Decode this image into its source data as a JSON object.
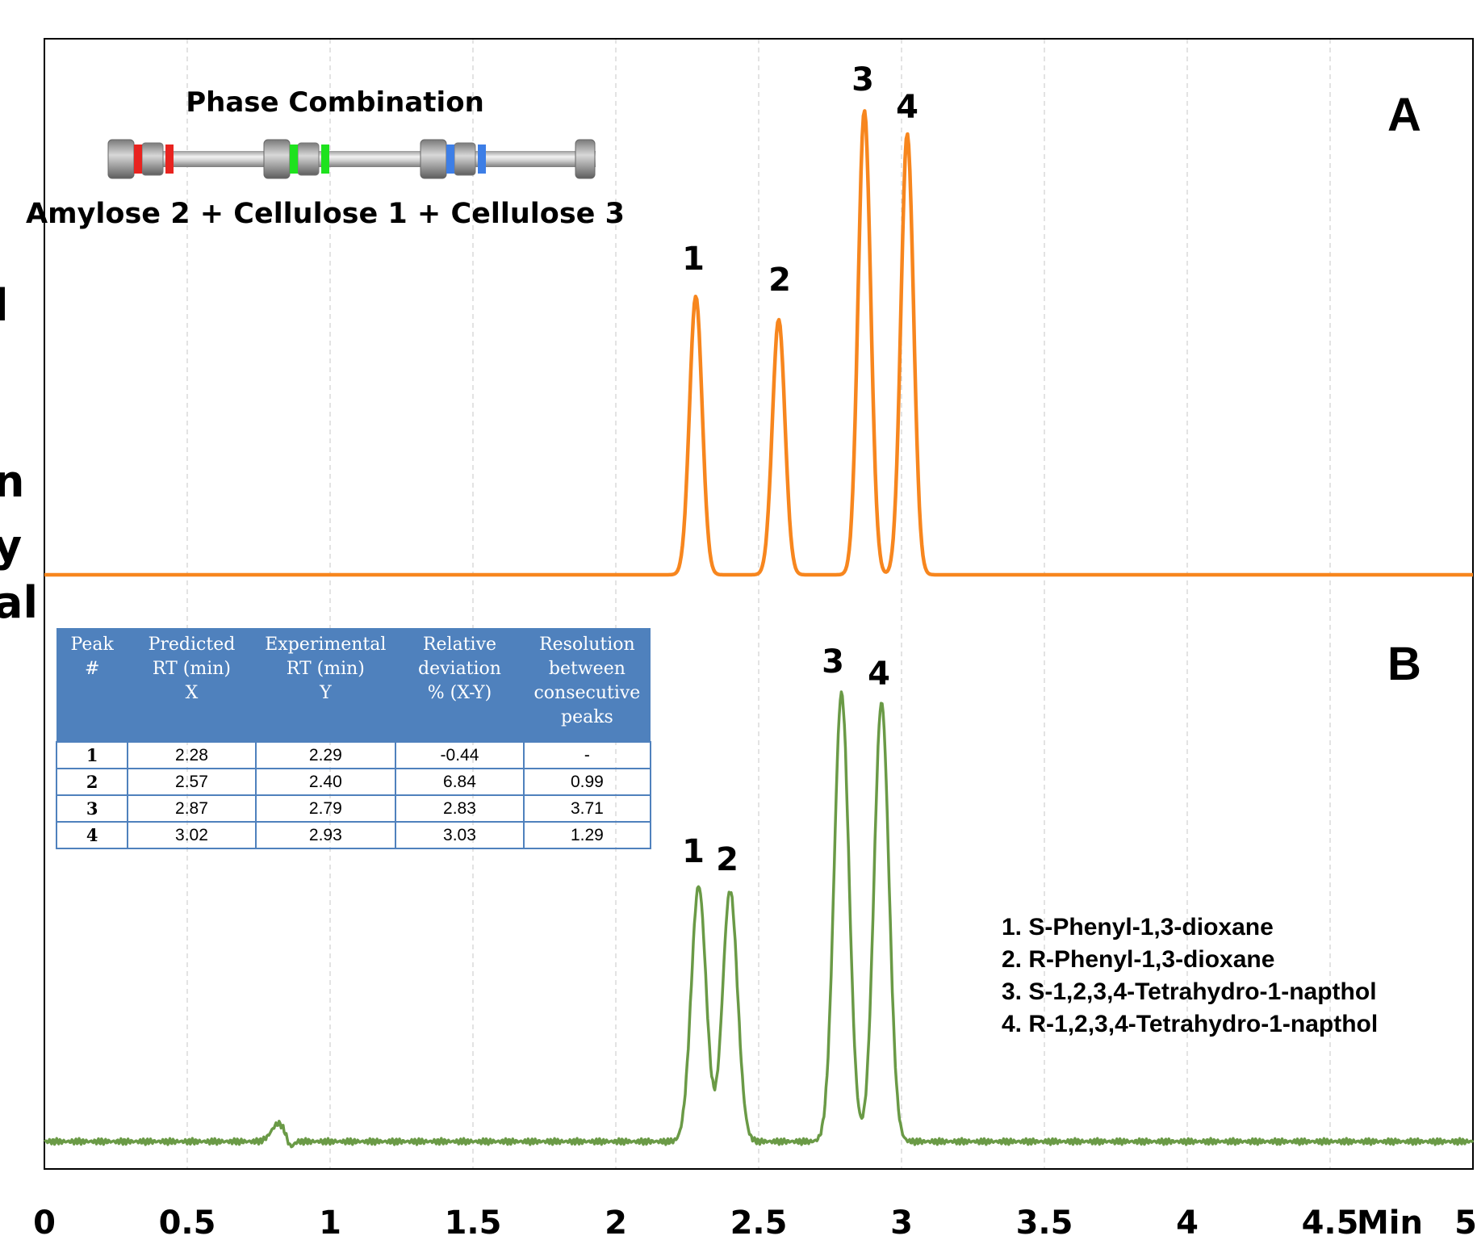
{
  "chart_data": [
    {
      "panel": "A",
      "type": "line",
      "color": "#f7861e",
      "xlim": [
        0,
        5
      ],
      "baseline": 0,
      "peaks": [
        {
          "label": "1",
          "x": 2.28,
          "height": 0.6
        },
        {
          "label": "2",
          "x": 2.57,
          "height": 0.55
        },
        {
          "label": "3",
          "x": 2.87,
          "height": 1.0
        },
        {
          "label": "4",
          "x": 3.02,
          "height": 0.95
        }
      ],
      "title": "Phase Combination",
      "subtitle": "Amylose 2 + Cellulose 1 + Cellulose 3"
    },
    {
      "panel": "B",
      "type": "line",
      "color": "#6a9a46",
      "xlim": [
        0,
        5
      ],
      "baseline": 0,
      "peaks": [
        {
          "label": "1",
          "x": 2.29,
          "height": 0.57
        },
        {
          "label": "2",
          "x": 2.4,
          "height": 0.56
        },
        {
          "label": "3",
          "x": 2.79,
          "height": 1.0
        },
        {
          "label": "4",
          "x": 2.93,
          "height": 0.98
        }
      ],
      "legend": [
        "1.  S-Phenyl-1,3-dioxane",
        "2.  R-Phenyl-1,3-dioxane",
        "3.  S-1,2,3,4-Tetrahydro-1-napthol",
        "4.  R-1,2,3,4-Tetrahydro-1-napthol"
      ]
    }
  ],
  "x_axis": {
    "ticks": [
      "0",
      "0.5",
      "1",
      "1.5",
      "2",
      "2.5",
      "3",
      "3.5",
      "4",
      "4.5",
      "5"
    ],
    "unit_label": "Min"
  },
  "table": {
    "headers": [
      [
        "Peak",
        "#"
      ],
      [
        "Predicted",
        "RT (min)",
        "X"
      ],
      [
        "Experimental",
        "RT (min)",
        "Y"
      ],
      [
        "Relative",
        "deviation",
        "% (X-Y)"
      ],
      [
        "Resolution",
        "between",
        "consecutive",
        "peaks"
      ]
    ],
    "rows": [
      [
        "1",
        "2.28",
        "2.29",
        "-0.44",
        "-"
      ],
      [
        "2",
        "2.57",
        "2.40",
        "6.84",
        "0.99"
      ],
      [
        "3",
        "2.87",
        "2.79",
        "2.83",
        "3.71"
      ],
      [
        "4",
        "3.02",
        "2.93",
        "3.03",
        "1.29"
      ]
    ]
  },
  "left_fragments": [
    "l",
    "n",
    "y",
    "al"
  ],
  "column_band_colors": [
    "#e8231f",
    "#1ee21e",
    "#3d7ee6"
  ]
}
